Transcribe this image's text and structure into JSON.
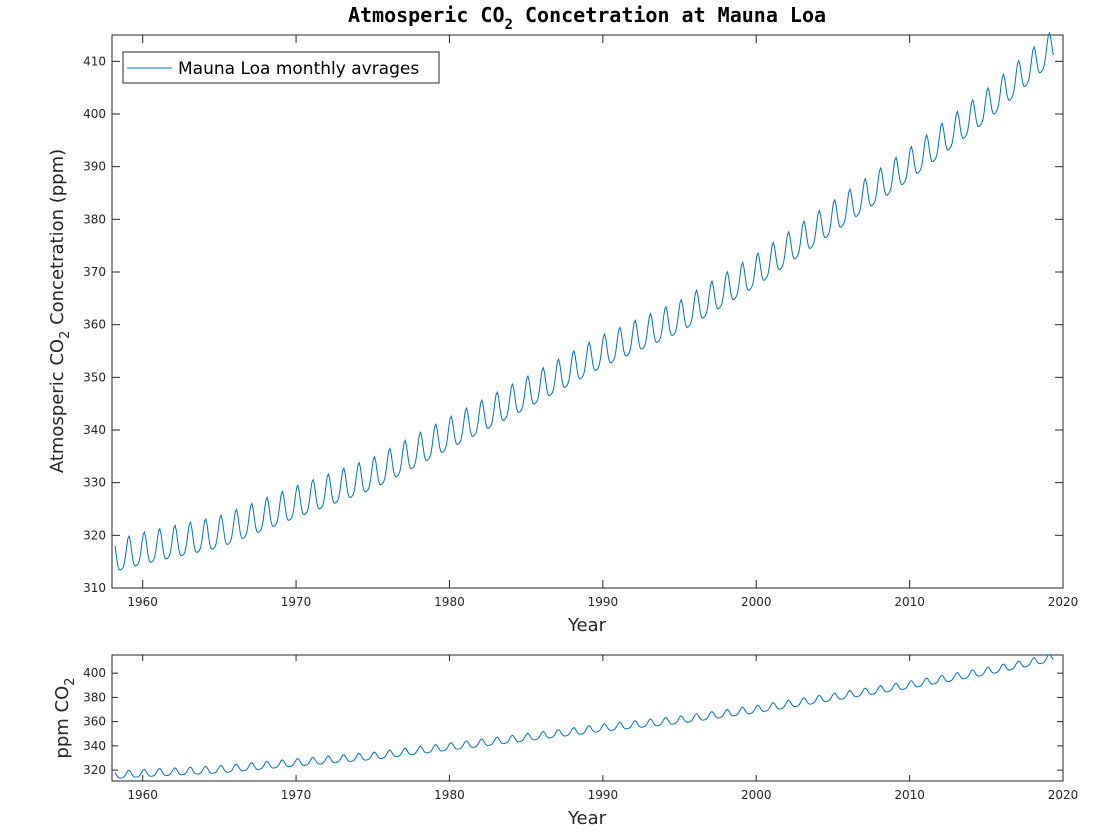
{
  "chart_data": [
    {
      "type": "line",
      "title_parts": [
        "Atmosperic CO",
        "2",
        " Concetration at Mauna Loa"
      ],
      "xlabel": "Year",
      "ylabel_parts": [
        "Atmosperic CO",
        "2",
        " Concetration (ppm)"
      ],
      "xlim": [
        1958,
        2020
      ],
      "ylim": [
        310,
        415
      ],
      "xticks": [
        1960,
        1970,
        1980,
        1990,
        2000,
        2010,
        2020
      ],
      "yticks": [
        310,
        320,
        330,
        340,
        350,
        360,
        370,
        380,
        390,
        400,
        410
      ],
      "grid": false,
      "legend_position": "top-left",
      "series": [
        {
          "name": "Mauna Loa monthly avrages",
          "color": "#0072BD",
          "data_description": "monthly averages with seasonal cycle (annual means listed)",
          "annual_years": [
            1958,
            1960,
            1965,
            1970,
            1975,
            1980,
            1985,
            1990,
            1995,
            2000,
            2005,
            2010,
            2015,
            2019
          ],
          "annual_means": [
            315.3,
            316.9,
            320.0,
            325.7,
            331.1,
            338.8,
            346.4,
            354.4,
            360.9,
            369.7,
            379.8,
            389.9,
            401.0,
            411.4
          ],
          "seasonal_amplitude_ppm": 3.0
        }
      ]
    },
    {
      "type": "line",
      "xlabel": "Year",
      "ylabel_parts": [
        "ppm CO",
        "2"
      ],
      "xlim": [
        1958,
        2020
      ],
      "ylim": [
        311,
        415
      ],
      "xticks": [
        1960,
        1970,
        1980,
        1990,
        2000,
        2010,
        2020
      ],
      "yticks": [
        320,
        340,
        360,
        380,
        400
      ],
      "grid": false,
      "series": [
        {
          "color": "#0072BD",
          "data_description": "same monthly averages as top panel",
          "annual_years": [
            1958,
            1960,
            1965,
            1970,
            1975,
            1980,
            1985,
            1990,
            1995,
            2000,
            2005,
            2010,
            2015,
            2019
          ],
          "annual_means": [
            315.3,
            316.9,
            320.0,
            325.7,
            331.1,
            338.8,
            346.4,
            354.4,
            360.9,
            369.7,
            379.8,
            389.9,
            401.0,
            411.4
          ],
          "seasonal_amplitude_ppm": 3.0
        }
      ]
    }
  ]
}
